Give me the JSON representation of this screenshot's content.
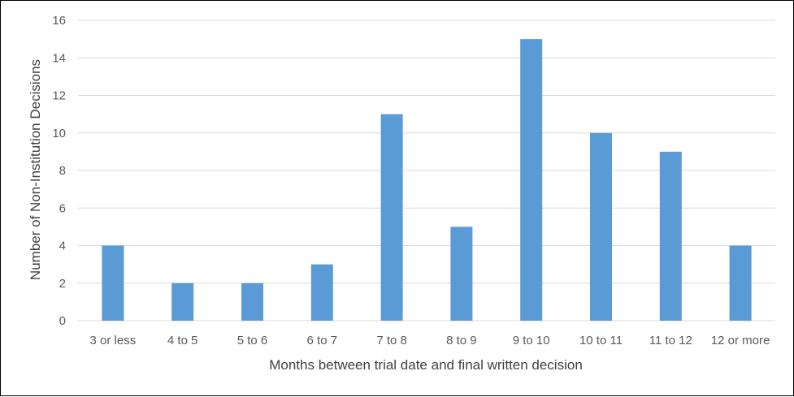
{
  "chart_data": {
    "type": "bar",
    "title": "",
    "xlabel": "Months between trial date and final written decision",
    "ylabel": "Number of Non-Institution Decisions",
    "categories": [
      "3 or less",
      "4 to 5",
      "5 to 6",
      "6 to 7",
      "7 to 8",
      "8 to 9",
      "9 to 10",
      "10 to 11",
      "11 to 12",
      "12 or more"
    ],
    "values": [
      4,
      2,
      2,
      3,
      11,
      5,
      15,
      10,
      9,
      4
    ],
    "ylim": [
      0,
      16
    ],
    "yticks": [
      0,
      2,
      4,
      6,
      8,
      10,
      12,
      14,
      16
    ],
    "grid": true,
    "legend": "none",
    "bar_color": "#5b9bd5",
    "grid_color": "#d9d9d9"
  }
}
